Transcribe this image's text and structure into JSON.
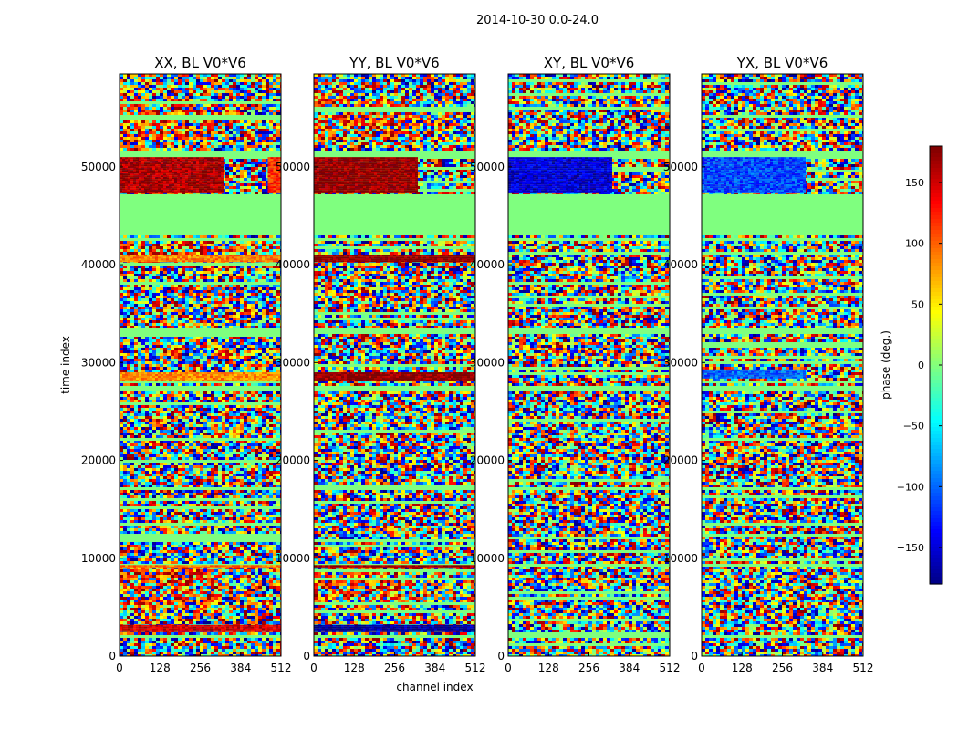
{
  "figure": {
    "suptitle": "2014-10-30 0.0-24.0"
  },
  "chart_data": [
    {
      "type": "heatmap",
      "title": "XX, BL V0*V6",
      "xlabel": "",
      "ylabel": "time index",
      "xlim": [
        0,
        512
      ],
      "ylim": [
        0,
        59500
      ],
      "xticks": [
        0,
        128,
        256,
        384,
        512
      ],
      "yticks": [
        0,
        10000,
        20000,
        30000,
        40000,
        50000
      ],
      "flagged_rows": [
        [
          43200,
          47300
        ],
        [
          51000,
          51700
        ],
        [
          42500,
          42800
        ],
        [
          33200,
          33500
        ],
        [
          27300,
          27800
        ],
        [
          17000,
          17400
        ],
        [
          9200,
          9600
        ],
        [
          2100,
          2400
        ]
      ],
      "coherent_blocks": [
        {
          "t_range": [
            47300,
            51000
          ],
          "ch_range": [
            0,
            325
          ],
          "phase": 165
        },
        {
          "t_range": [
            47300,
            51000
          ],
          "ch_range": [
            470,
            512
          ],
          "phase": 120
        },
        {
          "t_range": [
            28200,
            29000
          ],
          "ch_range": [
            0,
            512
          ],
          "phase": 85
        },
        {
          "t_range": [
            2600,
            3200
          ],
          "ch_range": [
            0,
            512
          ],
          "phase": 150
        },
        {
          "t_range": [
            9000,
            9300
          ],
          "ch_range": [
            0,
            512
          ],
          "phase": 95
        },
        {
          "t_range": [
            40300,
            41000
          ],
          "ch_range": [
            0,
            512
          ],
          "phase": 90
        }
      ],
      "warm_regions": [
        [
          53000,
          57000
        ],
        [
          4800,
          9000
        ],
        [
          40000,
          43000
        ]
      ]
    },
    {
      "type": "heatmap",
      "title": "YY, BL V0*V6",
      "xlabel": "channel index",
      "ylabel": "",
      "xlim": [
        0,
        512
      ],
      "ylim": [
        0,
        59500
      ],
      "xticks": [
        0,
        128,
        256,
        384,
        512
      ],
      "yticks": [
        0,
        10000,
        20000,
        30000,
        40000,
        50000
      ],
      "flagged_rows": [
        [
          43200,
          47300
        ],
        [
          51000,
          51700
        ],
        [
          42500,
          42800
        ],
        [
          33200,
          33500
        ],
        [
          27300,
          27800
        ],
        [
          17000,
          17400
        ],
        [
          9200,
          9600
        ],
        [
          2100,
          2400
        ]
      ],
      "coherent_blocks": [
        {
          "t_range": [
            47300,
            51000
          ],
          "ch_range": [
            0,
            325
          ],
          "phase": 175
        },
        {
          "t_range": [
            28200,
            29000
          ],
          "ch_range": [
            0,
            512
          ],
          "phase": 175
        },
        {
          "t_range": [
            40300,
            41000
          ],
          "ch_range": [
            0,
            512
          ],
          "phase": 175
        },
        {
          "t_range": [
            2600,
            3200
          ],
          "ch_range": [
            0,
            512
          ],
          "phase": -170
        },
        {
          "t_range": [
            9000,
            9300
          ],
          "ch_range": [
            0,
            512
          ],
          "phase": 170
        }
      ],
      "warm_regions": [
        [
          53000,
          57000
        ],
        [
          4800,
          9000
        ]
      ]
    },
    {
      "type": "heatmap",
      "title": "XY, BL V0*V6",
      "xlabel": "",
      "ylabel": "",
      "xlim": [
        0,
        512
      ],
      "ylim": [
        0,
        59500
      ],
      "xticks": [
        0,
        128,
        256,
        384,
        512
      ],
      "yticks": [
        0,
        10000,
        20000,
        30000,
        40000,
        50000
      ],
      "flagged_rows": [
        [
          43200,
          47300
        ],
        [
          51000,
          51700
        ],
        [
          42500,
          42800
        ],
        [
          33200,
          33500
        ],
        [
          27300,
          27800
        ],
        [
          17000,
          17400
        ],
        [
          9200,
          9600
        ],
        [
          2100,
          2400
        ]
      ],
      "coherent_blocks": [
        {
          "t_range": [
            47300,
            51000
          ],
          "ch_range": [
            0,
            325
          ],
          "phase": -150
        }
      ],
      "warm_regions": []
    },
    {
      "type": "heatmap",
      "title": "YX, BL V0*V6",
      "xlabel": "",
      "ylabel": "",
      "xlim": [
        0,
        512
      ],
      "ylim": [
        0,
        59500
      ],
      "xticks": [
        0,
        128,
        256,
        384,
        512
      ],
      "yticks": [
        0,
        10000,
        20000,
        30000,
        40000,
        50000
      ],
      "flagged_rows": [
        [
          43200,
          47300
        ],
        [
          51000,
          51700
        ],
        [
          42500,
          42800
        ],
        [
          33200,
          33500
        ],
        [
          27300,
          27800
        ],
        [
          17000,
          17400
        ],
        [
          9200,
          9600
        ],
        [
          2100,
          2400
        ]
      ],
      "coherent_blocks": [
        {
          "t_range": [
            47300,
            51000
          ],
          "ch_range": [
            0,
            325
          ],
          "phase": -110
        },
        {
          "t_range": [
            28500,
            29300
          ],
          "ch_range": [
            0,
            325
          ],
          "phase": -100
        }
      ],
      "warm_regions": []
    }
  ],
  "colorbar": {
    "label": "phase (deg.)",
    "range": [
      -180,
      180
    ],
    "ticks": [
      -150,
      -100,
      -50,
      0,
      50,
      100,
      150
    ],
    "colormap": "jet",
    "flagged_value_color": "#7fff7f"
  }
}
